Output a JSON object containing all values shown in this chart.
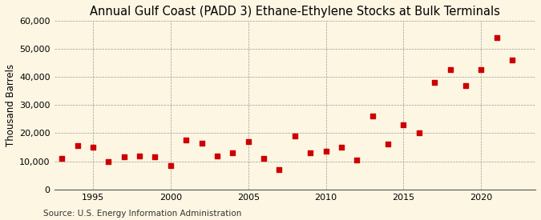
{
  "title": "Annual Gulf Coast (PADD 3) Ethane-Ethylene Stocks at Bulk Terminals",
  "ylabel": "Thousand Barrels",
  "source": "Source: U.S. Energy Information Administration",
  "years": [
    1993,
    1994,
    1995,
    1996,
    1997,
    1998,
    1999,
    2000,
    2001,
    2002,
    2003,
    2004,
    2005,
    2006,
    2007,
    2008,
    2009,
    2010,
    2011,
    2012,
    2013,
    2014,
    2015,
    2016,
    2017,
    2018,
    2019,
    2020,
    2021,
    2022
  ],
  "values": [
    11000,
    15500,
    15000,
    10000,
    11500,
    12000,
    11500,
    8500,
    17500,
    16500,
    12000,
    13000,
    17000,
    11000,
    7000,
    19000,
    13000,
    13500,
    15000,
    10500,
    26000,
    16000,
    23000,
    20000,
    38000,
    42500,
    37000,
    42500,
    54000,
    46000
  ],
  "marker_color": "#cc0000",
  "marker_size": 25,
  "background_color": "#fdf6e3",
  "grid_color": "#999999",
  "ylim": [
    0,
    60000
  ],
  "yticks": [
    0,
    10000,
    20000,
    30000,
    40000,
    50000,
    60000
  ],
  "ytick_labels": [
    "0",
    "10,000",
    "20,000",
    "30,000",
    "40,000",
    "50,000",
    "60,000"
  ],
  "xlim": [
    1992.5,
    2023.5
  ],
  "xticks": [
    1995,
    2000,
    2005,
    2010,
    2015,
    2020
  ],
  "title_fontsize": 10.5,
  "tick_fontsize": 8,
  "ylabel_fontsize": 8.5,
  "source_fontsize": 7.5
}
